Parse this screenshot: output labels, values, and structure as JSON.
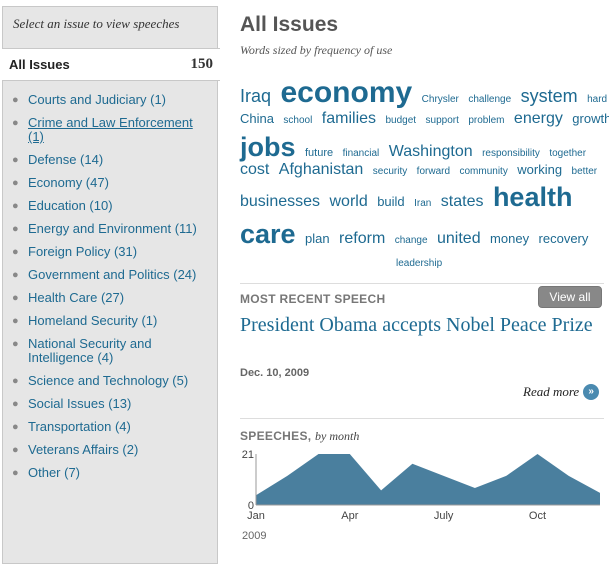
{
  "sidebar": {
    "prompt": "Select an issue to view speeches",
    "all_issues_label": "All Issues",
    "all_issues_count": "150",
    "issues": [
      {
        "label": "Courts and Judiciary (1)"
      },
      {
        "label": "Crime and Law Enforcement (1)"
      },
      {
        "label": "Defense (14)"
      },
      {
        "label": "Economy (47)"
      },
      {
        "label": "Education (10)"
      },
      {
        "label": "Energy and Environment (11)"
      },
      {
        "label": "Foreign Policy (31)"
      },
      {
        "label": "Government and Politics (24)"
      },
      {
        "label": "Health Care (27)"
      },
      {
        "label": "Homeland Security (1)"
      },
      {
        "label": "National Security and Intelligence (4)"
      },
      {
        "label": "Science and Technology (5)"
      },
      {
        "label": "Social Issues (13)"
      },
      {
        "label": "Transportation (4)"
      },
      {
        "label": "Veterans Affairs (2)"
      },
      {
        "label": "Other (7)"
      }
    ]
  },
  "main": {
    "title": "All Issues",
    "subtitle": "Words sized by frequency of use",
    "cloud_lines": [
      [
        "Iraq",
        "economy",
        "Chrysler",
        "challenge",
        "system",
        "hard"
      ],
      [
        "China",
        "school",
        "families",
        "budget",
        "support",
        "problem",
        "energy",
        "growth"
      ],
      [
        "jobs",
        "future",
        "financial",
        "Washington",
        "responsibility",
        "together"
      ],
      [
        "cost",
        "Afghanistan",
        "security",
        "forward",
        "community",
        "working",
        "better"
      ],
      [
        "businesses",
        "world",
        "build",
        "Iran",
        "states",
        "health"
      ],
      [
        "care",
        "plan",
        "reform",
        "change",
        "united",
        "money",
        "recovery"
      ],
      [
        "leadership"
      ]
    ],
    "recent": {
      "heading": "MOST RECENT SPEECH",
      "view_all": "View all",
      "title": "President Obama accepts Nobel Peace Prize",
      "date": "Dec. 10, 2009",
      "read_more": "Read more",
      "read_more_icon": "double-chevron-right-icon"
    },
    "speeches": {
      "heading": "SPEECHES,",
      "heading_sub": "by month",
      "year": "2009"
    }
  },
  "colors": {
    "link": "#1e6a91",
    "chart_fill": "#4a7f9e",
    "sidebar_bg": "#e6e6e6"
  },
  "chart_data": {
    "type": "area",
    "x": [
      "Jan",
      "Feb",
      "Mar",
      "Apr",
      "May",
      "Jun",
      "Jul",
      "Aug",
      "Sep",
      "Oct",
      "Nov",
      "Dec"
    ],
    "values": [
      4,
      12,
      21,
      21,
      6,
      17,
      12,
      7,
      12,
      21,
      12,
      5
    ],
    "x_tick_labels": [
      "Jan",
      "Apr",
      "July",
      "Oct"
    ],
    "y_tick_labels": [
      "21",
      "0"
    ],
    "ylim": [
      0,
      21
    ],
    "title": "SPEECHES, by month",
    "xlabel": "2009"
  }
}
